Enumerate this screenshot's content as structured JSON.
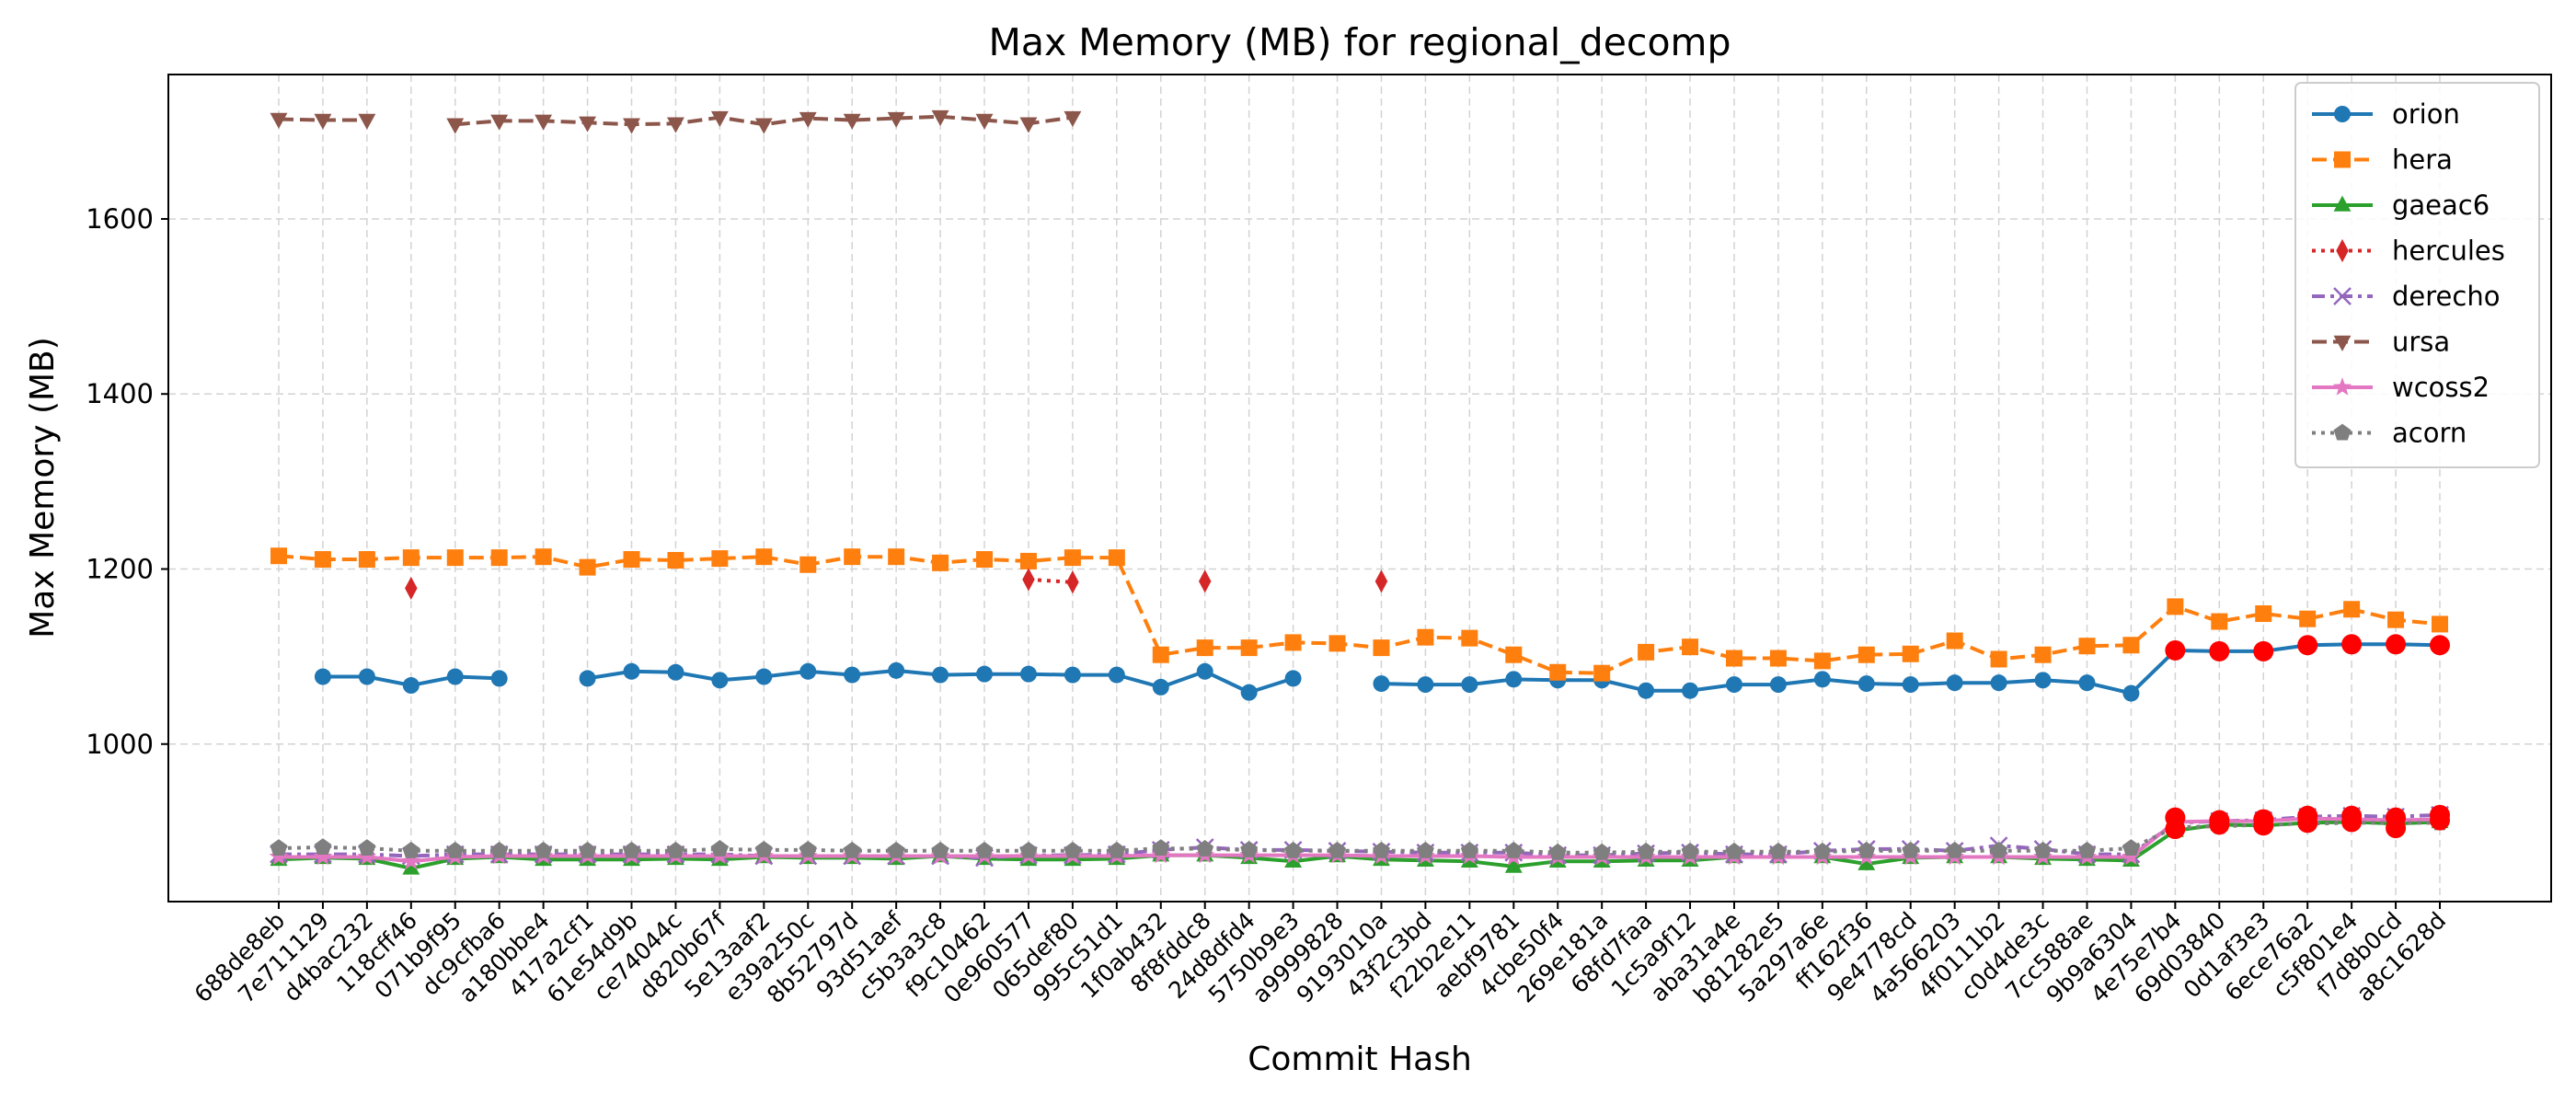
{
  "chart_data": {
    "type": "line",
    "title": "Max Memory (MB) for regional_decomp",
    "xlabel": "Commit Hash",
    "ylabel": "Max Memory (MB)",
    "ylim": [
      820,
      1765
    ],
    "yticks": [
      1000,
      1200,
      1400,
      1600
    ],
    "grid": true,
    "legend_position": "top-right",
    "categories": [
      "688de8eb",
      "7e711129",
      "d4bac232",
      "118cff46",
      "071b9f95",
      "dc9cfba6",
      "a180bbe4",
      "417a2cf1",
      "61e54d9b",
      "ce74044c",
      "d820b67f",
      "5e13aaf2",
      "e39a250c",
      "8b52797d",
      "93d51aef",
      "c5b3a3c8",
      "f9c10462",
      "0e960577",
      "065def80",
      "995c51d1",
      "1f0ab432",
      "8f8fddc8",
      "24d8dfd4",
      "5750b9e3",
      "a9999828",
      "9193010a",
      "43f2c3bd",
      "f22b2e11",
      "aebf9781",
      "4cbe50f4",
      "269e181a",
      "68fd7faa",
      "1c5a9f12",
      "aba31a4e",
      "b81282e5",
      "5a297a6e",
      "ff162f36",
      "9e4778cd",
      "4a566203",
      "4f0111b2",
      "c0d4de3c",
      "7cc588ae",
      "9b9a6304",
      "4e75e7b4",
      "69d03840",
      "0d1af3e3",
      "6ece76a2",
      "c5f801e4",
      "f7d8b0cd",
      "a8c1628d"
    ],
    "series": [
      {
        "name": "orion",
        "color": "#1f77b4",
        "style": "solid",
        "marker": "circle",
        "values": [
          null,
          1077,
          1077,
          1067,
          1077,
          1075,
          null,
          1075,
          1083,
          1082,
          1073,
          1077,
          1083,
          1079,
          1084,
          1079,
          1080,
          1080,
          1079,
          1079,
          1065,
          1083,
          1059,
          1075,
          null,
          1069,
          1068,
          1068,
          1074,
          1073,
          1073,
          1061,
          1061,
          1068,
          1068,
          1074,
          1069,
          1068,
          1070,
          1070,
          1073,
          1070,
          1058,
          1107,
          1106,
          1106,
          1113,
          1114,
          1114,
          1113
        ]
      },
      {
        "name": "hera",
        "color": "#ff7f0e",
        "style": "dashed",
        "marker": "square",
        "values": [
          1215,
          1211,
          1211,
          1213,
          1213,
          1213,
          1214,
          1202,
          1211,
          1210,
          1212,
          1214,
          1205,
          1214,
          1214,
          1207,
          1211,
          1209,
          1213,
          1213,
          1102,
          1110,
          1110,
          1116,
          1115,
          1110,
          1122,
          1121,
          1102,
          1082,
          1081,
          1105,
          1111,
          1098,
          1098,
          1095,
          1102,
          1103,
          1118,
          1097,
          1102,
          1112,
          1113,
          1157,
          1140,
          1149,
          1143,
          1154,
          1142,
          1137
        ]
      },
      {
        "name": "gaeac6",
        "color": "#2ca02c",
        "style": "solid",
        "marker": "triangle-up",
        "values": [
          868,
          870,
          869,
          858,
          869,
          871,
          868,
          868,
          868,
          869,
          868,
          871,
          870,
          870,
          869,
          872,
          869,
          868,
          868,
          869,
          873,
          873,
          870,
          866,
          872,
          868,
          867,
          866,
          860,
          866,
          866,
          867,
          867,
          871,
          871,
          871,
          863,
          870,
          871,
          871,
          869,
          868,
          867,
          901,
          908,
          907,
          910,
          911,
          909,
          911
        ]
      },
      {
        "name": "hercules",
        "color": "#d62728",
        "style": "dotted",
        "marker": "diamond",
        "values": [
          null,
          null,
          null,
          1178,
          null,
          null,
          null,
          null,
          null,
          null,
          null,
          null,
          null,
          null,
          null,
          null,
          null,
          1188,
          1185,
          null,
          null,
          1186,
          null,
          null,
          null,
          1186,
          null,
          null,
          null,
          null,
          null,
          null,
          null,
          null,
          null,
          null,
          null,
          null,
          null,
          null,
          null,
          null,
          null,
          null,
          null,
          null,
          null,
          null,
          null,
          null
        ]
      },
      {
        "name": "derecho",
        "color": "#9467bd",
        "style": "dashdot",
        "marker": "x",
        "values": [
          874,
          874,
          874,
          872,
          874,
          874,
          874,
          874,
          874,
          874,
          874,
          872,
          872,
          872,
          872,
          872,
          870,
          873,
          873,
          874,
          879,
          882,
          879,
          879,
          878,
          877,
          876,
          876,
          876,
          873,
          873,
          875,
          876,
          874,
          874,
          878,
          880,
          880,
          878,
          884,
          880,
          874,
          874,
          910,
          912,
          913,
          917,
          918,
          917,
          919
        ]
      },
      {
        "name": "ursa",
        "color": "#8c564b",
        "style": "dashed",
        "marker": "triangle-down",
        "values": [
          1714,
          1713,
          1713,
          null,
          1708,
          1712,
          1712,
          1710,
          1708,
          1709,
          1716,
          1708,
          1715,
          1713,
          1715,
          1717,
          1713,
          1709,
          1716,
          null,
          null,
          null,
          null,
          null,
          null,
          null,
          null,
          null,
          null,
          null,
          null,
          null,
          null,
          null,
          null,
          null,
          null,
          null,
          null,
          null,
          null,
          null,
          null,
          null,
          null,
          null,
          null,
          null,
          null,
          null
        ]
      },
      {
        "name": "wcoss2",
        "color": "#e377c2",
        "style": "solid",
        "marker": "star",
        "values": [
          871,
          871,
          871,
          866,
          871,
          872,
          872,
          872,
          872,
          872,
          872,
          872,
          872,
          872,
          872,
          872,
          872,
          872,
          872,
          872,
          873,
          873,
          873,
          873,
          873,
          872,
          872,
          872,
          871,
          871,
          871,
          871,
          871,
          871,
          871,
          871,
          871,
          871,
          871,
          871,
          871,
          871,
          871,
          911,
          912,
          912,
          915,
          914,
          913,
          914
        ]
      },
      {
        "name": "acorn",
        "color": "#7f7f7f",
        "style": "dotted",
        "marker": "pentagon",
        "values": [
          881,
          882,
          881,
          878,
          878,
          878,
          878,
          878,
          878,
          878,
          880,
          879,
          879,
          878,
          878,
          878,
          878,
          878,
          878,
          878,
          881,
          880,
          879,
          878,
          878,
          878,
          878,
          878,
          878,
          876,
          876,
          877,
          877,
          877,
          877,
          877,
          878,
          878,
          878,
          878,
          878,
          878,
          881,
          905,
          906,
          908,
          909,
          910,
          910,
          910
        ]
      }
    ],
    "highlight": {
      "color": "#ff0000",
      "points": [
        {
          "category": "4e75e7b4",
          "values": [
            1107,
            916,
            903
          ]
        },
        {
          "category": "69d03840",
          "values": [
            1106,
            913,
            908
          ]
        },
        {
          "category": "0d1af3e3",
          "values": [
            1106,
            914,
            907
          ]
        },
        {
          "category": "6ece76a2",
          "values": [
            1113,
            918,
            910
          ]
        },
        {
          "category": "c5f801e4",
          "values": [
            1114,
            918,
            911
          ]
        },
        {
          "category": "f7d8b0cd",
          "values": [
            1114,
            916,
            904
          ]
        },
        {
          "category": "a8c1628d",
          "values": [
            1113,
            919,
            913
          ]
        }
      ]
    }
  }
}
